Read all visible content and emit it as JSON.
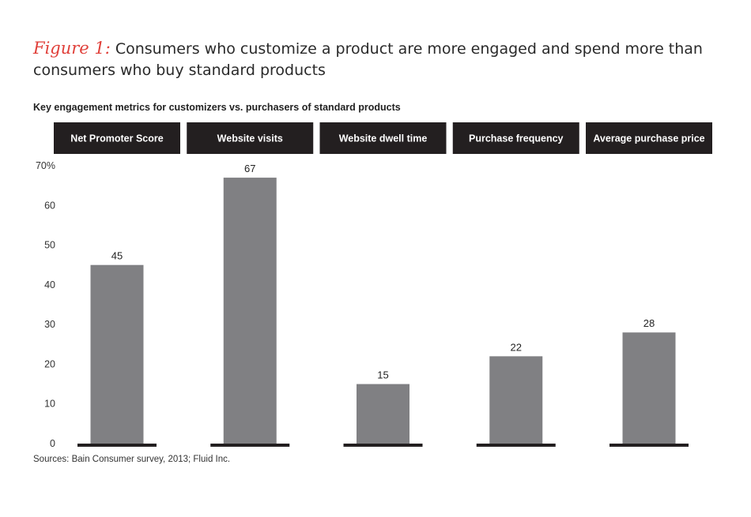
{
  "figure": {
    "label": "Figure 1:",
    "title": "Consumers who customize a product are more engaged and spend more than consumers who buy standard products"
  },
  "subtitle": "Key engagement metrics for customizers vs. purchasers of standard products",
  "sources": "Sources: Bain Consumer survey, 2013; Fluid Inc.",
  "colors": {
    "header_bg": "#231f20",
    "header_text": "#ffffff",
    "bar": "#808083",
    "baseline": "#231f20",
    "accent": "#e0403a"
  },
  "chart_data": {
    "type": "bar",
    "categories": [
      "Net Promoter Score",
      "Website visits",
      "Website dwell time",
      "Purchase frequency",
      "Average purchase price"
    ],
    "values": [
      45,
      67,
      15,
      22,
      28
    ],
    "data_labels": [
      "45",
      "67",
      "15",
      "22",
      "28"
    ],
    "ylim": [
      0,
      70
    ],
    "yticks": [
      0,
      10,
      20,
      30,
      40,
      50,
      60,
      70
    ],
    "ytick_labels": [
      "0",
      "10",
      "20",
      "30",
      "40",
      "50",
      "60",
      "70%"
    ],
    "grid": false
  }
}
